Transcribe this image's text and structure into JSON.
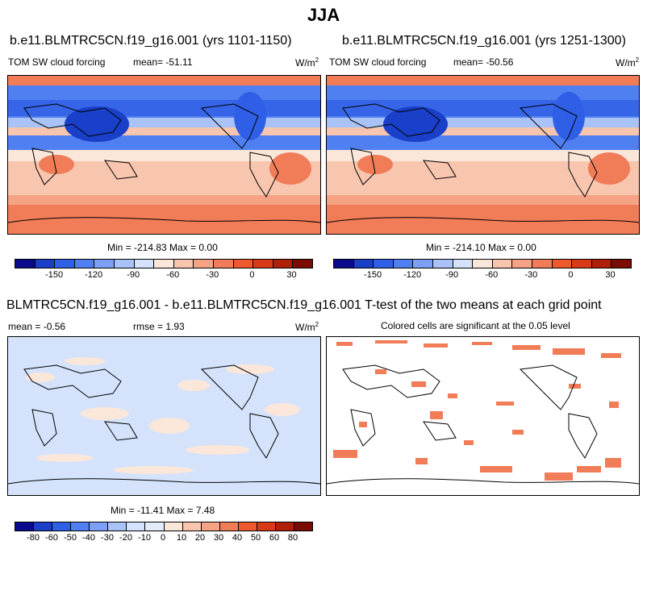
{
  "main_title": "JJA",
  "panels": {
    "p1": {
      "title": "b.e11.BLMTRC5CN.f19_g16.001 (yrs 1101-1150)",
      "left": "TOM SW cloud forcing",
      "mean": "mean= -51.11",
      "units": "W/m",
      "units_sup": "2",
      "minmax": "Min = -214.83 Max =   0.00"
    },
    "p2": {
      "title": "b.e11.BLMTRC5CN.f19_g16.001 (yrs 1251-1300)",
      "left": "TOM SW cloud forcing",
      "mean": "mean= -50.56",
      "units": "W/m",
      "units_sup": "2",
      "minmax": "Min = -214.10 Max =   0.00"
    },
    "diff": {
      "title": "BLMTRC5CN.f19_g16.001 - b.e11.BLMTRC5CN.f19_g16.001 T-test of the two means at each grid point",
      "mean": "mean =  -0.56",
      "rmse": "rmse =  1.93",
      "units": "W/m",
      "units_sup": "2",
      "minmax": "Min = -11.41 Max =   7.48"
    },
    "ttest": {
      "subtitle": "Colored cells are significant at the 0.05 level"
    }
  },
  "colorbar_top": {
    "colors": [
      "#0a0a8c",
      "#1a3fc9",
      "#2f5fe6",
      "#4f7ff0",
      "#7d9ff5",
      "#a9c2f8",
      "#d4e3fb",
      "#fbe7d9",
      "#f8c5ae",
      "#f5a384",
      "#f07c58",
      "#ec5a2e",
      "#d83a18",
      "#b02008",
      "#7a0c02"
    ],
    "ticks": [
      "-150",
      "-120",
      "-90",
      "-60",
      "-30",
      "0",
      "30"
    ],
    "tick_boundaries": [
      2,
      4,
      6,
      8,
      10,
      12,
      14
    ]
  },
  "colorbar_bottom": {
    "colors": [
      "#0a0a8c",
      "#1a3fc9",
      "#2f5fe6",
      "#4f7ff0",
      "#7d9ff5",
      "#a9c2f8",
      "#d4e3fb",
      "#e2ecfb",
      "#fbe7d9",
      "#f8c5ae",
      "#f5a384",
      "#f07c58",
      "#ec5a2e",
      "#d83a18",
      "#b02008",
      "#7a0c02"
    ],
    "ticks": [
      "-80",
      "-60",
      "-50",
      "-40",
      "-30",
      "-20",
      "-10",
      "0",
      "10",
      "20",
      "30",
      "40",
      "50",
      "60",
      "80"
    ]
  },
  "chart_data": [
    {
      "type": "heatmap",
      "title": "b.e11.BLMTRC5CN.f19_g16.001 (yrs 1101-1150)",
      "variable": "TOM SW cloud forcing",
      "units": "W/m2",
      "mean": -51.11,
      "min": -214.83,
      "max": 0.0,
      "contour_levels": [
        -150,
        -120,
        -90,
        -60,
        -30,
        0,
        30
      ]
    },
    {
      "type": "heatmap",
      "title": "b.e11.BLMTRC5CN.f19_g16.001 (yrs 1251-1300)",
      "variable": "TOM SW cloud forcing",
      "units": "W/m2",
      "mean": -50.56,
      "min": -214.1,
      "max": 0.0,
      "contour_levels": [
        -150,
        -120,
        -90,
        -60,
        -30,
        0,
        30
      ]
    },
    {
      "type": "heatmap",
      "title": "BLMTRC5CN.f19_g16.001 - b.e11.BLMTRC5CN.f19_g16.001",
      "units": "W/m2",
      "mean": -0.56,
      "rmse": 1.93,
      "min": -11.41,
      "max": 7.48,
      "contour_levels": [
        -80,
        -60,
        -50,
        -40,
        -30,
        -20,
        -10,
        0,
        10,
        20,
        30,
        40,
        50,
        60,
        80
      ]
    },
    {
      "type": "heatmap",
      "title": "T-test of the two means at each grid point",
      "subtitle": "Colored cells are significant at the 0.05 level",
      "significance_level": 0.05
    }
  ]
}
